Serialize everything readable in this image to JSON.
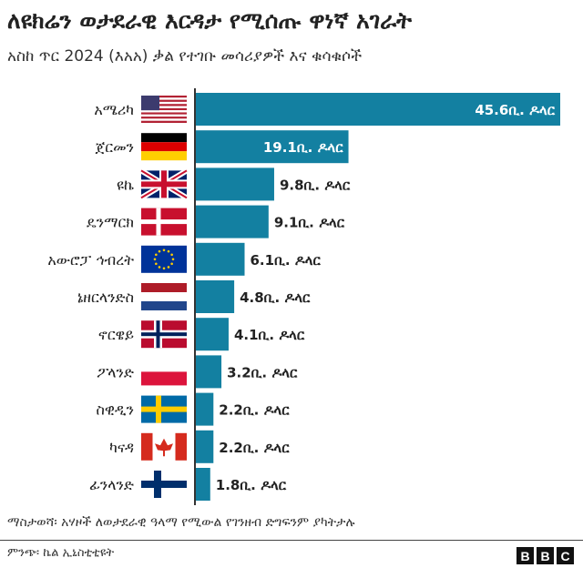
{
  "header": {
    "title": "ለዩክሬን ወታደራዊ እርዳታ የሚሰጡ ዋነኛ አገራት",
    "subtitle": "አስከ ጥር 2024 (እአአ) ቃል የተገቡ መሳሪያዎች እና ቁሳቁሶች"
  },
  "chart_data": {
    "type": "bar",
    "orientation": "horizontal",
    "bar_color": "#1380A1",
    "unit_suffix": "ቢ. ዶላር",
    "categories": [
      "አሜሪካ",
      "ጀርመን",
      "ዩኬ",
      "ዴንማርክ",
      "አውሮፓ ኅብረት",
      "ኔዘርላንድስ",
      "ኖርዌይ",
      "ፖላንድ",
      "ስዊዲን",
      "ካናዳ",
      "ፊንላንድ"
    ],
    "flags": [
      "us-flag",
      "germany-flag",
      "uk-flag",
      "denmark-flag",
      "eu-flag",
      "netherlands-flag",
      "norway-flag",
      "poland-flag",
      "sweden-flag",
      "canada-flag",
      "finland-flag"
    ],
    "values": [
      45.6,
      19.1,
      9.8,
      9.1,
      6.1,
      4.8,
      4.1,
      3.2,
      2.2,
      2.2,
      1.8
    ],
    "data_labels": [
      "45.6ቢ. ዶላር",
      "19.1ቢ. ዶላር",
      "9.8ቢ. ዶላር",
      "9.1ቢ. ዶላር",
      "6.1ቢ. ዶላር",
      "4.8ቢ. ዶላር",
      "4.1ቢ. ዶላር",
      "3.2ቢ. ዶላር",
      "2.2ቢ. ዶላር",
      "2.2ቢ. ዶላር",
      "1.8ቢ. ዶላር"
    ],
    "xlim": [
      0,
      45.6
    ],
    "grid": false
  },
  "footer": {
    "note": "ማስታወሻ፡ አሃዞች ለወታደራዊ ዓላማ የሚውል የገንዘብ ድግፍንም ያካትታሉ",
    "source": "ምንጭ፡ ኬል ኢኒስቲቲዩት",
    "logo": [
      "B",
      "B",
      "C"
    ]
  }
}
